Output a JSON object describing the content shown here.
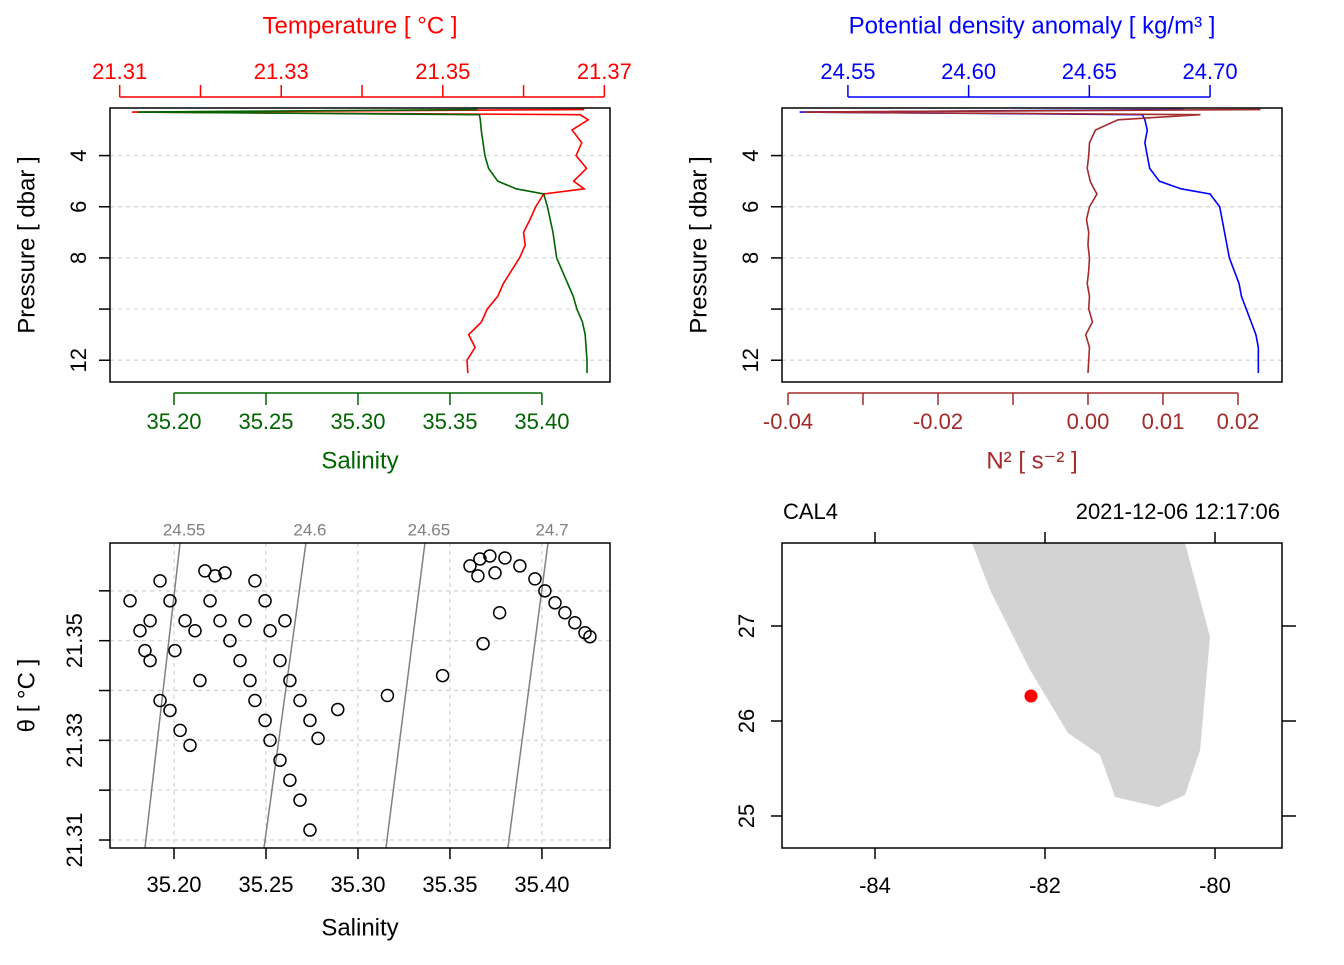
{
  "chart_data": [
    {
      "type": "profile",
      "ylabel": "Pressure [ dbar ]",
      "y": [
        2.2,
        2.3,
        2.4,
        2.6,
        3.0,
        3.5,
        4.0,
        4.5,
        5.0,
        5.3,
        5.5,
        6.0,
        6.5,
        7.0,
        7.5,
        8.0,
        8.5,
        9.0,
        9.5,
        10.0,
        10.5,
        11.0,
        11.5,
        12.0,
        12.5
      ],
      "ylim": [
        2.14,
        12.85
      ],
      "y_reversed": true,
      "yticks": [
        4,
        6,
        8,
        12
      ],
      "yminor": [
        10
      ],
      "grid": true,
      "top_axis": {
        "label": "Temperature [ °C ]",
        "color": "#ff0000",
        "lim": [
          21.3088,
          21.3707
        ],
        "ticks": [
          21.31,
          21.33,
          21.35,
          21.37
        ],
        "minor": [
          21.32,
          21.34,
          21.36
        ],
        "values": [
          21.3675,
          21.3115,
          21.367,
          21.368,
          21.366,
          21.3672,
          21.3665,
          21.3678,
          21.3662,
          21.3675,
          21.3625,
          21.3615,
          21.3608,
          21.36,
          21.3602,
          21.3595,
          21.3585,
          21.3575,
          21.3568,
          21.3555,
          21.3548,
          21.3532,
          21.354,
          21.353,
          21.3531
        ]
      },
      "bottom_axis": {
        "label": "Salinity",
        "color": "#006400",
        "lim": [
          35.1652,
          35.437
        ],
        "ticks": [
          {
            "value": 35.2,
            "label": "35.20"
          },
          35.25,
          {
            "value": 35.3,
            "label": "35.30"
          },
          35.35,
          {
            "value": 35.4,
            "label": "35.40"
          }
        ],
        "minor": [],
        "values": [
          35.365,
          35.18,
          35.366,
          35.3665,
          35.367,
          35.368,
          35.369,
          35.371,
          35.376,
          35.386,
          35.401,
          35.403,
          35.4045,
          35.406,
          35.407,
          35.408,
          35.411,
          35.414,
          35.417,
          35.419,
          35.422,
          35.4235,
          35.424,
          35.4245,
          35.4245
        ]
      }
    },
    {
      "type": "profile",
      "ylabel": "Pressure [ dbar ]",
      "y": [
        2.2,
        2.3,
        2.4,
        2.6,
        3.0,
        3.5,
        4.0,
        4.5,
        5.0,
        5.3,
        5.5,
        6.0,
        6.5,
        7.0,
        7.5,
        8.0,
        8.5,
        9.0,
        9.5,
        10.0,
        10.5,
        11.0,
        11.5,
        12.0,
        12.5
      ],
      "ylim": [
        2.14,
        12.85
      ],
      "y_reversed": true,
      "yticks": [
        4,
        6,
        8,
        12
      ],
      "yminor": [
        10
      ],
      "grid": true,
      "top_axis": {
        "label": "Potential density anomaly [ kg/m³ ]",
        "color": "#0000ff",
        "lim": [
          24.5227,
          24.7298
        ],
        "ticks": [
          24.55,
          {
            "value": 24.6,
            "label": "24.60"
          },
          24.65,
          {
            "value": 24.7,
            "label": "24.70"
          }
        ],
        "minor": [],
        "values": [
          24.689,
          24.53,
          24.672,
          24.673,
          24.674,
          24.673,
          24.674,
          24.675,
          24.679,
          24.688,
          24.7,
          24.704,
          24.705,
          24.706,
          24.707,
          24.708,
          24.71,
          24.712,
          24.713,
          24.715,
          24.717,
          24.719,
          24.72,
          24.72,
          24.72
        ]
      },
      "bottom_axis": {
        "label": "N² [ s⁻² ]",
        "color": "#a52a2a",
        "lim": [
          -0.0408,
          0.02587
        ],
        "ticks": [
          -0.04,
          -0.02,
          {
            "value": 0,
            "label": "0.00"
          },
          0.01,
          0.02
        ],
        "minor": [
          -0.03,
          -0.01
        ],
        "values": [
          0.023,
          -0.038,
          0.015,
          0.004,
          0.001,
          0.0002,
          0.0001,
          -0.0001,
          0.0003,
          0.0008,
          0.0012,
          0.0002,
          -0.0002,
          0.0001,
          0.0,
          0.0002,
          0.0001,
          -0.0001,
          0.0002,
          0.0001,
          0.0006,
          -0.0003,
          0.0002,
          0.0001,
          0.0
        ]
      }
    },
    {
      "type": "ts",
      "xlabel": "Salinity",
      "ylabel": "θ [ °C ]",
      "xlim": [
        35.1652,
        35.437
      ],
      "xticks": [
        {
          "value": 35.2,
          "label": "35.20"
        },
        35.25,
        {
          "value": 35.3,
          "label": "35.30"
        },
        35.35,
        {
          "value": 35.4,
          "label": "35.40"
        }
      ],
      "ylim": [
        21.3084,
        21.3696
      ],
      "yticks": [
        21.31,
        21.33,
        21.35
      ],
      "yminor": [
        21.32,
        21.34,
        21.36
      ],
      "grid": true,
      "points": {
        "x": [
          35.3609,
          35.3663,
          35.3717,
          35.3799,
          35.388,
          35.3962,
          35.4016,
          35.4071,
          35.4125,
          35.4179,
          35.4234,
          35.4261,
          35.3652,
          35.3745,
          35.377,
          35.368,
          35.346,
          35.316,
          35.289,
          35.2168,
          35.2223,
          35.2277,
          35.2196,
          35.225,
          35.2304,
          35.2359,
          35.2413,
          35.244,
          35.2495,
          35.2522,
          35.2576,
          35.263,
          35.2685,
          35.2739,
          35.244,
          35.2495,
          35.2522,
          35.2576,
          35.263,
          35.2685,
          35.2739,
          35.2783,
          35.2603,
          35.2386,
          35.2114,
          35.2141,
          35.1761,
          35.1815,
          35.187,
          35.1924,
          35.1924,
          35.1978,
          35.2033,
          35.2087,
          35.1978,
          35.2005,
          35.206,
          35.187,
          35.1842
        ],
        "y": [
          21.365,
          21.3664,
          21.367,
          21.3666,
          21.365,
          21.3624,
          21.36,
          21.3576,
          21.3556,
          21.3536,
          21.3516,
          21.3508,
          21.363,
          21.3636,
          21.3556,
          21.3494,
          21.343,
          21.339,
          21.3362,
          21.364,
          21.363,
          21.3636,
          21.358,
          21.354,
          21.35,
          21.346,
          21.342,
          21.338,
          21.334,
          21.33,
          21.326,
          21.322,
          21.318,
          21.312,
          21.362,
          21.358,
          21.352,
          21.346,
          21.342,
          21.338,
          21.334,
          21.3304,
          21.354,
          21.354,
          21.352,
          21.342,
          21.358,
          21.352,
          21.346,
          21.362,
          21.338,
          21.336,
          21.332,
          21.329,
          21.358,
          21.348,
          21.354,
          21.354,
          21.348
        ]
      },
      "isopycnals": [
        {
          "label": "24.55",
          "s": [
            35.1842,
            35.2033
          ]
        },
        {
          "label": "24.6",
          "s": [
            35.2489,
            35.2717
          ]
        },
        {
          "label": "24.65",
          "s": [
            35.3152,
            35.3364
          ]
        },
        {
          "label": "24.7",
          "s": [
            35.3815,
            35.4033
          ]
        }
      ]
    },
    {
      "type": "map",
      "title_left": "CAL4",
      "title_right": "2021-12-06 12:17:06",
      "xlim": [
        -85.094,
        -79.212
      ],
      "xticks": [
        -84,
        -82,
        -80
      ],
      "ylim": [
        24.663,
        27.874
      ],
      "yticks": [
        25,
        26,
        27
      ],
      "station": {
        "lon": -82.165,
        "lat": 26.263,
        "color": "#ff0000"
      },
      "coastline": {
        "color": "#d3d3d3",
        "lon": [
          -82.859,
          -82.647,
          -82.176,
          -81.729,
          -81.353,
          -81.176,
          -80.671,
          -80.353,
          -80.176,
          -80.059,
          -80.353
        ],
        "lat": [
          27.874,
          27.379,
          26.537,
          25.874,
          25.642,
          25.2,
          25.095,
          25.221,
          25.695,
          26.884,
          27.874
        ]
      }
    }
  ]
}
